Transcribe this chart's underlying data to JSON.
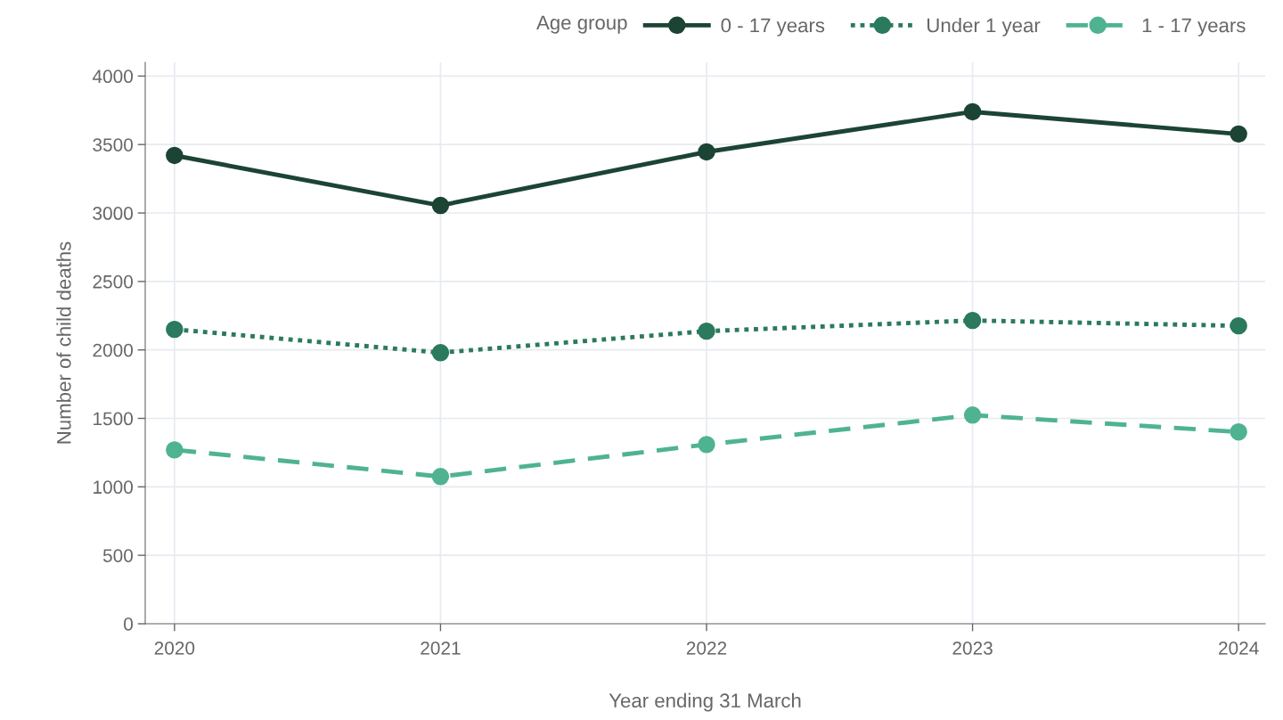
{
  "chart_data": {
    "type": "line",
    "xlabel": "Year ending 31 March",
    "ylabel": "Number of child deaths",
    "legend_title": "Age group",
    "x": [
      2020,
      2021,
      2022,
      2023,
      2024
    ],
    "series": [
      {
        "name": "0 - 17 years",
        "color": "#1c4434",
        "line_style": "solid",
        "values": [
          3420,
          3055,
          3446,
          3739,
          3577
        ]
      },
      {
        "name": "Under 1 year",
        "color": "#2b7a5e",
        "line_style": "dotted",
        "values": [
          2150,
          1980,
          2137,
          2215,
          2176
        ]
      },
      {
        "name": "1 - 17 years",
        "color": "#4fb392",
        "line_style": "dashed",
        "values": [
          1270,
          1075,
          1309,
          1524,
          1401
        ]
      }
    ],
    "xlim": [
      2019.89,
      2024.1
    ],
    "xticks": [
      2020,
      2021,
      2022,
      2023,
      2024
    ],
    "ylim": [
      0,
      4100
    ],
    "yticks": [
      0,
      500,
      1000,
      1500,
      2000,
      2500,
      3000,
      3500,
      4000
    ],
    "grid": true,
    "legend": "top right",
    "marker": "circle"
  }
}
